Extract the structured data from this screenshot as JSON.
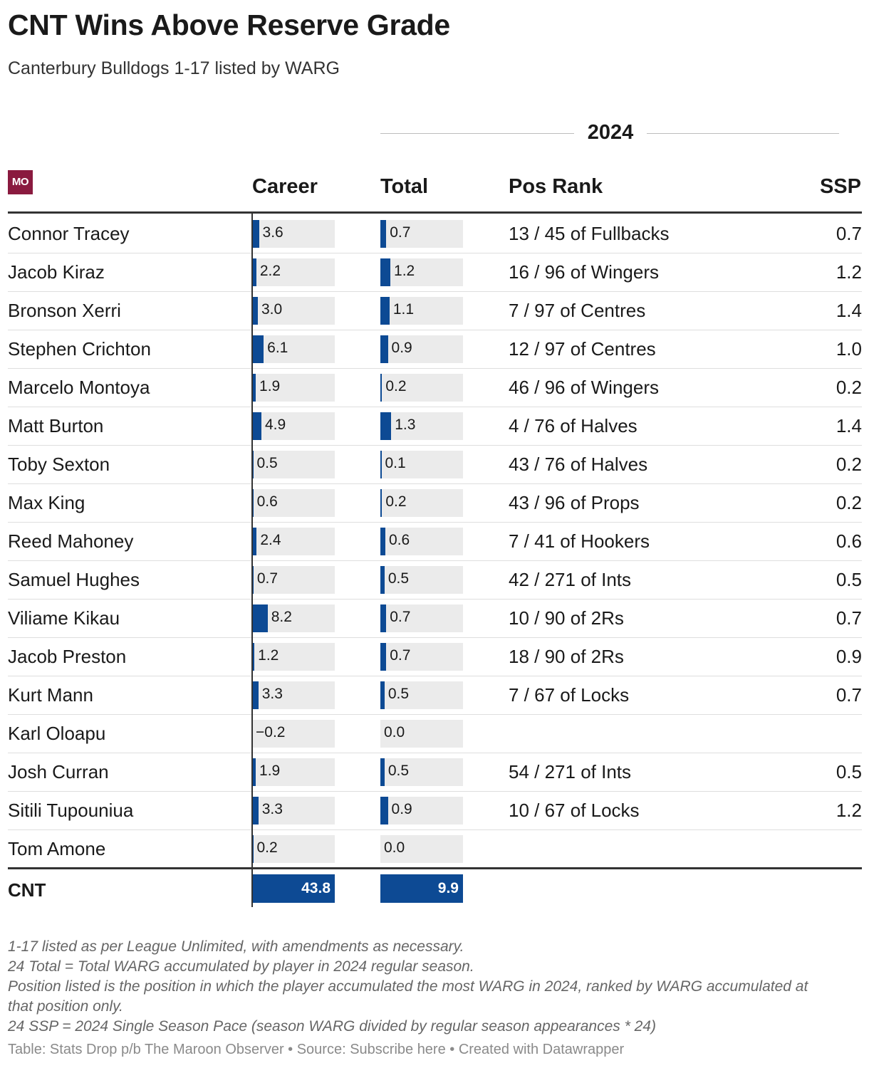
{
  "title": "CNT Wins Above Reserve Grade",
  "subtitle": "Canterbury Bulldogs 1-17 listed by WARG",
  "logo_text": "MO",
  "group_header": "2024",
  "columns": {
    "career": "Career",
    "total": "Total",
    "pos_rank": "Pos Rank",
    "ssp": "SSP"
  },
  "colors": {
    "bar": "#0d4a94",
    "bar_bg": "#ebebeb",
    "logo": "#8a1a3f"
  },
  "chart_data": {
    "type": "table",
    "bar_scale": {
      "career_max": 43.8,
      "total_max": 9.9
    },
    "rows": [
      {
        "name": "Connor Tracey",
        "career": 3.6,
        "career_label": "3.6",
        "total": 0.7,
        "total_label": "0.7",
        "pos_rank": "13 / 45 of Fullbacks",
        "ssp": "0.7"
      },
      {
        "name": "Jacob Kiraz",
        "career": 2.2,
        "career_label": "2.2",
        "total": 1.2,
        "total_label": "1.2",
        "pos_rank": "16 / 96 of Wingers",
        "ssp": "1.2"
      },
      {
        "name": "Bronson Xerri",
        "career": 3.0,
        "career_label": "3.0",
        "total": 1.1,
        "total_label": "1.1",
        "pos_rank": "7 / 97 of Centres",
        "ssp": "1.4"
      },
      {
        "name": "Stephen Crichton",
        "career": 6.1,
        "career_label": "6.1",
        "total": 0.9,
        "total_label": "0.9",
        "pos_rank": "12 / 97 of Centres",
        "ssp": "1.0"
      },
      {
        "name": "Marcelo Montoya",
        "career": 1.9,
        "career_label": "1.9",
        "total": 0.2,
        "total_label": "0.2",
        "pos_rank": "46 / 96 of Wingers",
        "ssp": "0.2"
      },
      {
        "name": "Matt Burton",
        "career": 4.9,
        "career_label": "4.9",
        "total": 1.3,
        "total_label": "1.3",
        "pos_rank": "4 / 76 of Halves",
        "ssp": "1.4"
      },
      {
        "name": "Toby Sexton",
        "career": 0.5,
        "career_label": "0.5",
        "total": 0.1,
        "total_label": "0.1",
        "pos_rank": "43 / 76 of Halves",
        "ssp": "0.2"
      },
      {
        "name": "Max King",
        "career": 0.6,
        "career_label": "0.6",
        "total": 0.2,
        "total_label": "0.2",
        "pos_rank": "43 / 96 of Props",
        "ssp": "0.2"
      },
      {
        "name": "Reed Mahoney",
        "career": 2.4,
        "career_label": "2.4",
        "total": 0.6,
        "total_label": "0.6",
        "pos_rank": "7 / 41 of Hookers",
        "ssp": "0.6"
      },
      {
        "name": "Samuel Hughes",
        "career": 0.7,
        "career_label": "0.7",
        "total": 0.5,
        "total_label": "0.5",
        "pos_rank": "42 / 271 of Ints",
        "ssp": "0.5"
      },
      {
        "name": "Viliame Kikau",
        "career": 8.2,
        "career_label": "8.2",
        "total": 0.7,
        "total_label": "0.7",
        "pos_rank": "10 / 90 of 2Rs",
        "ssp": "0.7"
      },
      {
        "name": "Jacob Preston",
        "career": 1.2,
        "career_label": "1.2",
        "total": 0.7,
        "total_label": "0.7",
        "pos_rank": "18 / 90 of 2Rs",
        "ssp": "0.9"
      },
      {
        "name": "Kurt Mann",
        "career": 3.3,
        "career_label": "3.3",
        "total": 0.5,
        "total_label": "0.5",
        "pos_rank": "7 / 67 of Locks",
        "ssp": "0.7"
      },
      {
        "name": "Karl Oloapu",
        "career": -0.2,
        "career_label": "−0.2",
        "total": 0.0,
        "total_label": "0.0",
        "pos_rank": "",
        "ssp": ""
      },
      {
        "name": "Josh Curran",
        "career": 1.9,
        "career_label": "1.9",
        "total": 0.5,
        "total_label": "0.5",
        "pos_rank": "54 / 271 of Ints",
        "ssp": "0.5"
      },
      {
        "name": "Sitili Tupouniua",
        "career": 3.3,
        "career_label": "3.3",
        "total": 0.9,
        "total_label": "0.9",
        "pos_rank": "10 / 67 of Locks",
        "ssp": "1.2"
      },
      {
        "name": "Tom Amone",
        "career": 0.2,
        "career_label": "0.2",
        "total": 0.0,
        "total_label": "0.0",
        "pos_rank": "",
        "ssp": ""
      }
    ],
    "totals": {
      "label": "CNT",
      "career": 43.8,
      "career_label": "43.8",
      "total": 9.9,
      "total_label": "9.9"
    }
  },
  "notes": [
    "1-17 listed as per League Unlimited, with amendments as necessary.",
    "24 Total = Total WARG accumulated by player in 2024 regular season.",
    "Position listed is the position in which the player accumulated the most WARG in 2024, ranked by WARG accumulated at that position only.",
    "24 SSP = 2024 Single Season Pace (season WARG divided by regular season appearances * 24)"
  ],
  "source": "Table: Stats Drop p/b The Maroon Observer • Source: Subscribe here • Created with Datawrapper"
}
